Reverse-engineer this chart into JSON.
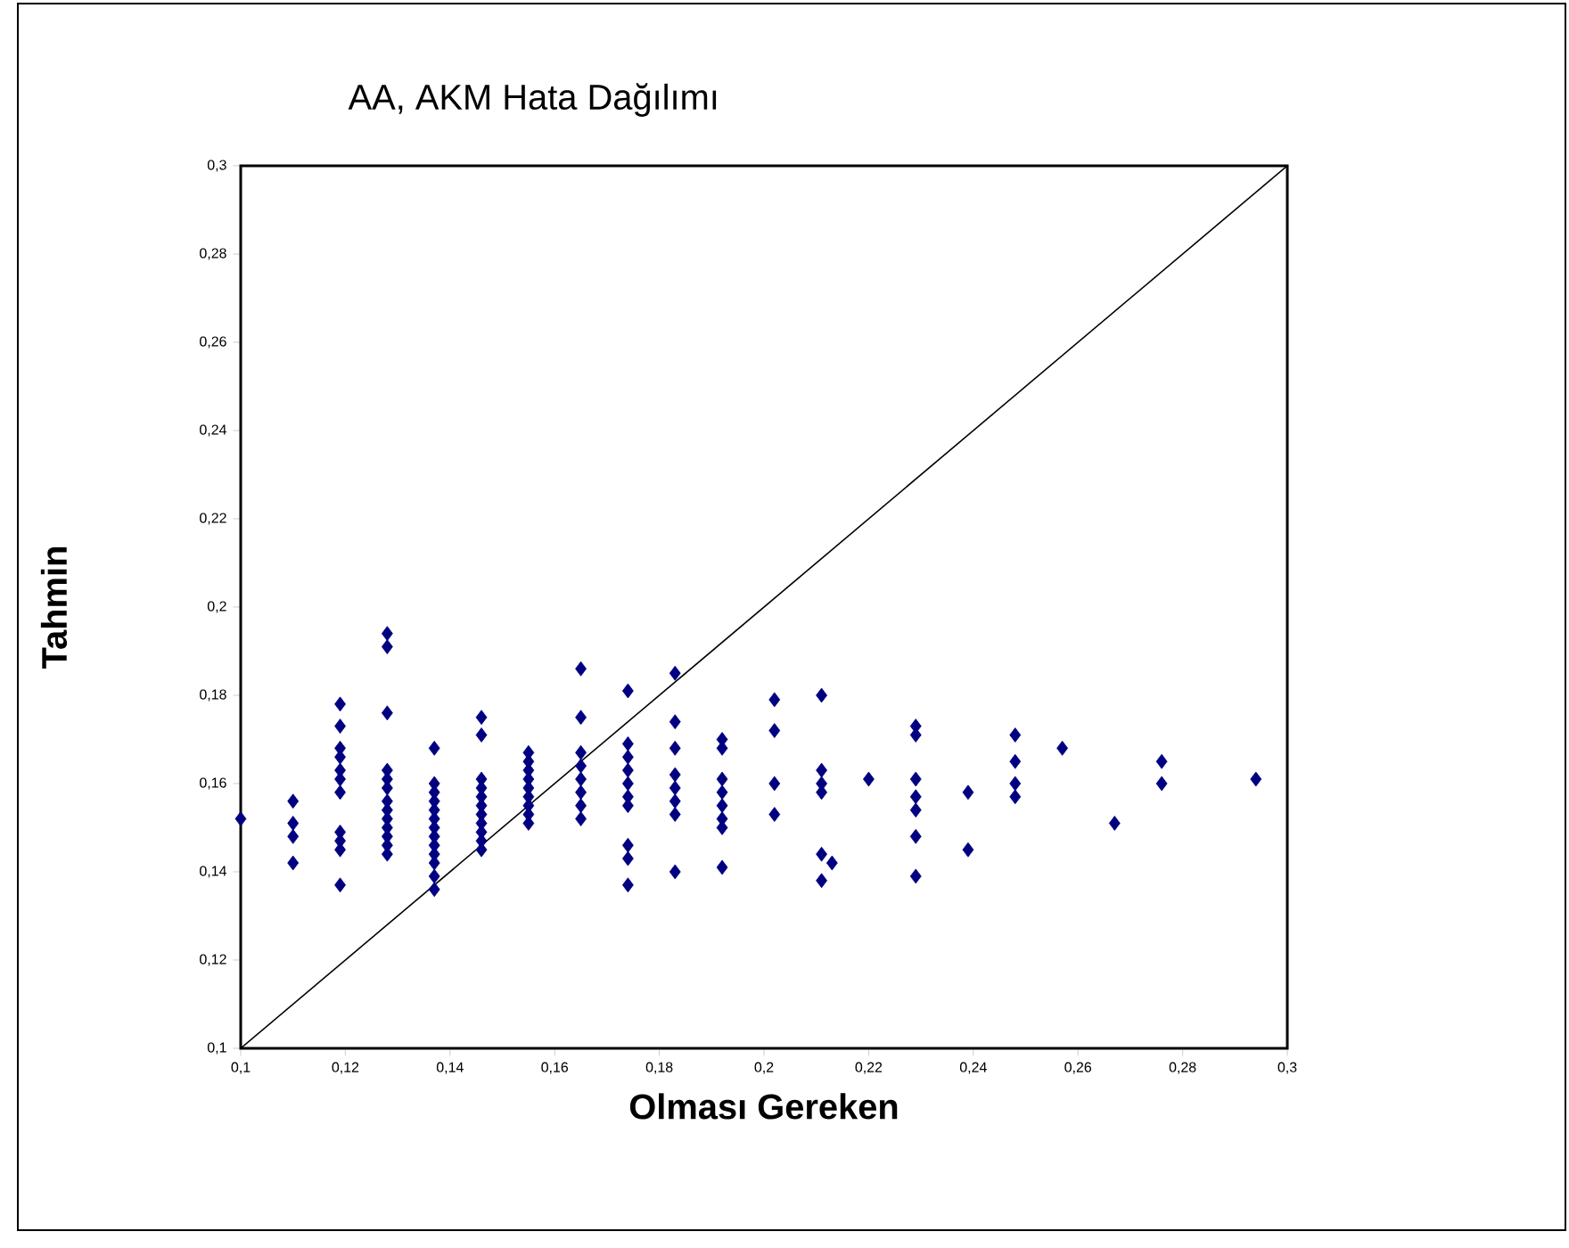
{
  "chart_data": {
    "type": "scatter",
    "title": "AA, AKM Hata Dağılımı",
    "xlabel": "Olması Gereken",
    "ylabel": "Tahmin",
    "xlim": [
      0.1,
      0.3
    ],
    "ylim": [
      0.1,
      0.3
    ],
    "xticks": [
      {
        "value": 0.1,
        "label": "0,1"
      },
      {
        "value": 0.12,
        "label": "0,12"
      },
      {
        "value": 0.14,
        "label": "0,14"
      },
      {
        "value": 0.16,
        "label": "0,16"
      },
      {
        "value": 0.18,
        "label": "0,18"
      },
      {
        "value": 0.2,
        "label": "0,2"
      },
      {
        "value": 0.22,
        "label": "0,22"
      },
      {
        "value": 0.24,
        "label": "0,24"
      },
      {
        "value": 0.26,
        "label": "0,26"
      },
      {
        "value": 0.28,
        "label": "0,28"
      },
      {
        "value": 0.3,
        "label": "0,3"
      }
    ],
    "yticks": [
      {
        "value": 0.1,
        "label": "0,1"
      },
      {
        "value": 0.12,
        "label": "0,12"
      },
      {
        "value": 0.14,
        "label": "0,14"
      },
      {
        "value": 0.16,
        "label": "0,16"
      },
      {
        "value": 0.18,
        "label": "0,18"
      },
      {
        "value": 0.2,
        "label": "0,2"
      },
      {
        "value": 0.22,
        "label": "0,22"
      },
      {
        "value": 0.24,
        "label": "0,24"
      },
      {
        "value": 0.26,
        "label": "0,26"
      },
      {
        "value": 0.28,
        "label": "0,28"
      },
      {
        "value": 0.3,
        "label": "0,3"
      }
    ],
    "series": [
      {
        "marker": "diamond",
        "color": "#000080",
        "x": [
          0.1,
          0.11,
          0.11,
          0.11,
          0.11,
          0.119,
          0.119,
          0.119,
          0.119,
          0.119,
          0.119,
          0.119,
          0.119,
          0.119,
          0.119,
          0.119,
          0.128,
          0.128,
          0.128,
          0.128,
          0.128,
          0.128,
          0.128,
          0.128,
          0.128,
          0.128,
          0.128,
          0.128,
          0.128,
          0.137,
          0.137,
          0.137,
          0.137,
          0.137,
          0.137,
          0.137,
          0.137,
          0.137,
          0.137,
          0.137,
          0.137,
          0.137,
          0.146,
          0.146,
          0.146,
          0.146,
          0.146,
          0.146,
          0.146,
          0.146,
          0.146,
          0.146,
          0.146,
          0.155,
          0.155,
          0.155,
          0.155,
          0.155,
          0.155,
          0.155,
          0.155,
          0.155,
          0.165,
          0.165,
          0.165,
          0.165,
          0.165,
          0.165,
          0.165,
          0.165,
          0.174,
          0.174,
          0.174,
          0.174,
          0.174,
          0.174,
          0.174,
          0.174,
          0.174,
          0.174,
          0.183,
          0.183,
          0.183,
          0.183,
          0.183,
          0.183,
          0.183,
          0.183,
          0.192,
          0.192,
          0.192,
          0.192,
          0.192,
          0.192,
          0.192,
          0.192,
          0.202,
          0.202,
          0.202,
          0.202,
          0.211,
          0.211,
          0.211,
          0.211,
          0.211,
          0.211,
          0.213,
          0.22,
          0.229,
          0.229,
          0.229,
          0.229,
          0.229,
          0.229,
          0.229,
          0.239,
          0.239,
          0.248,
          0.248,
          0.248,
          0.248,
          0.257,
          0.267,
          0.276,
          0.276,
          0.294
        ],
        "values": [
          0.152,
          0.156,
          0.151,
          0.148,
          0.142,
          0.178,
          0.173,
          0.168,
          0.166,
          0.163,
          0.161,
          0.158,
          0.149,
          0.147,
          0.145,
          0.137,
          0.194,
          0.191,
          0.176,
          0.163,
          0.161,
          0.159,
          0.156,
          0.154,
          0.152,
          0.15,
          0.148,
          0.146,
          0.144,
          0.168,
          0.16,
          0.158,
          0.156,
          0.154,
          0.152,
          0.15,
          0.148,
          0.146,
          0.144,
          0.142,
          0.139,
          0.136,
          0.175,
          0.171,
          0.161,
          0.159,
          0.157,
          0.155,
          0.153,
          0.151,
          0.149,
          0.147,
          0.145,
          0.167,
          0.165,
          0.163,
          0.161,
          0.159,
          0.157,
          0.155,
          0.153,
          0.151,
          0.186,
          0.175,
          0.167,
          0.164,
          0.161,
          0.158,
          0.155,
          0.152,
          0.181,
          0.169,
          0.166,
          0.163,
          0.16,
          0.157,
          0.155,
          0.146,
          0.143,
          0.137,
          0.185,
          0.174,
          0.168,
          0.162,
          0.159,
          0.156,
          0.153,
          0.14,
          0.17,
          0.168,
          0.161,
          0.158,
          0.155,
          0.152,
          0.15,
          0.141,
          0.179,
          0.172,
          0.16,
          0.153,
          0.18,
          0.163,
          0.16,
          0.158,
          0.144,
          0.138,
          0.142,
          0.161,
          0.173,
          0.171,
          0.161,
          0.157,
          0.154,
          0.148,
          0.139,
          0.158,
          0.145,
          0.171,
          0.165,
          0.16,
          0.157,
          0.168,
          0.151,
          0.165,
          0.16,
          0.161
        ]
      },
      {
        "type": "line",
        "marker": "none",
        "color": "#000000",
        "x": [
          0.1,
          0.3
        ],
        "values": [
          0.1,
          0.3
        ]
      }
    ]
  }
}
